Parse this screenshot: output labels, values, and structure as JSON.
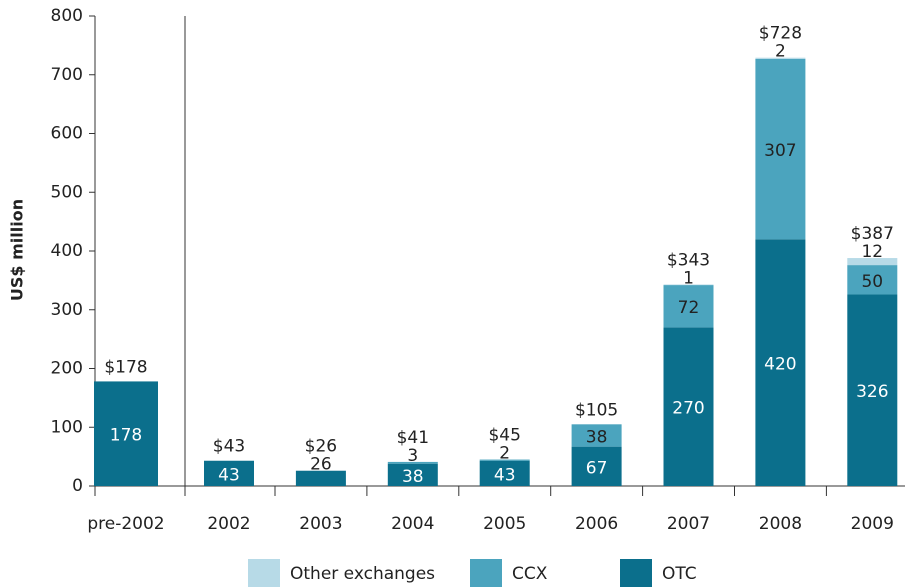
{
  "chart_data": {
    "type": "stacked_bar",
    "y_label": "US$ million",
    "categories": [
      "pre-2002",
      "2002",
      "2003",
      "2004",
      "2005",
      "2006",
      "2007",
      "2008",
      "2009"
    ],
    "series": [
      {
        "name": "OTC",
        "color": "#0b6f8c",
        "values": [
          178,
          43,
          26,
          38,
          43,
          67,
          270,
          420,
          326
        ]
      },
      {
        "name": "CCX",
        "color": "#4ba4be",
        "values": [
          null,
          null,
          null,
          3,
          2,
          38,
          72,
          307,
          50
        ]
      },
      {
        "name": "Other exchanges",
        "color": "#b7dae7",
        "values": [
          null,
          null,
          null,
          null,
          null,
          null,
          1,
          2,
          12
        ]
      }
    ],
    "totals": [
      178,
      43,
      26,
      41,
      45,
      105,
      343,
      728,
      387
    ],
    "total_labels": [
      "$178",
      "$43",
      "$26",
      "$41",
      "$45",
      "$105",
      "$343",
      "$728",
      "$387"
    ],
    "ylim": [
      0,
      800
    ],
    "yticks": [
      0,
      100,
      200,
      300,
      400,
      500,
      600,
      700,
      800
    ],
    "legend": "bottom"
  }
}
